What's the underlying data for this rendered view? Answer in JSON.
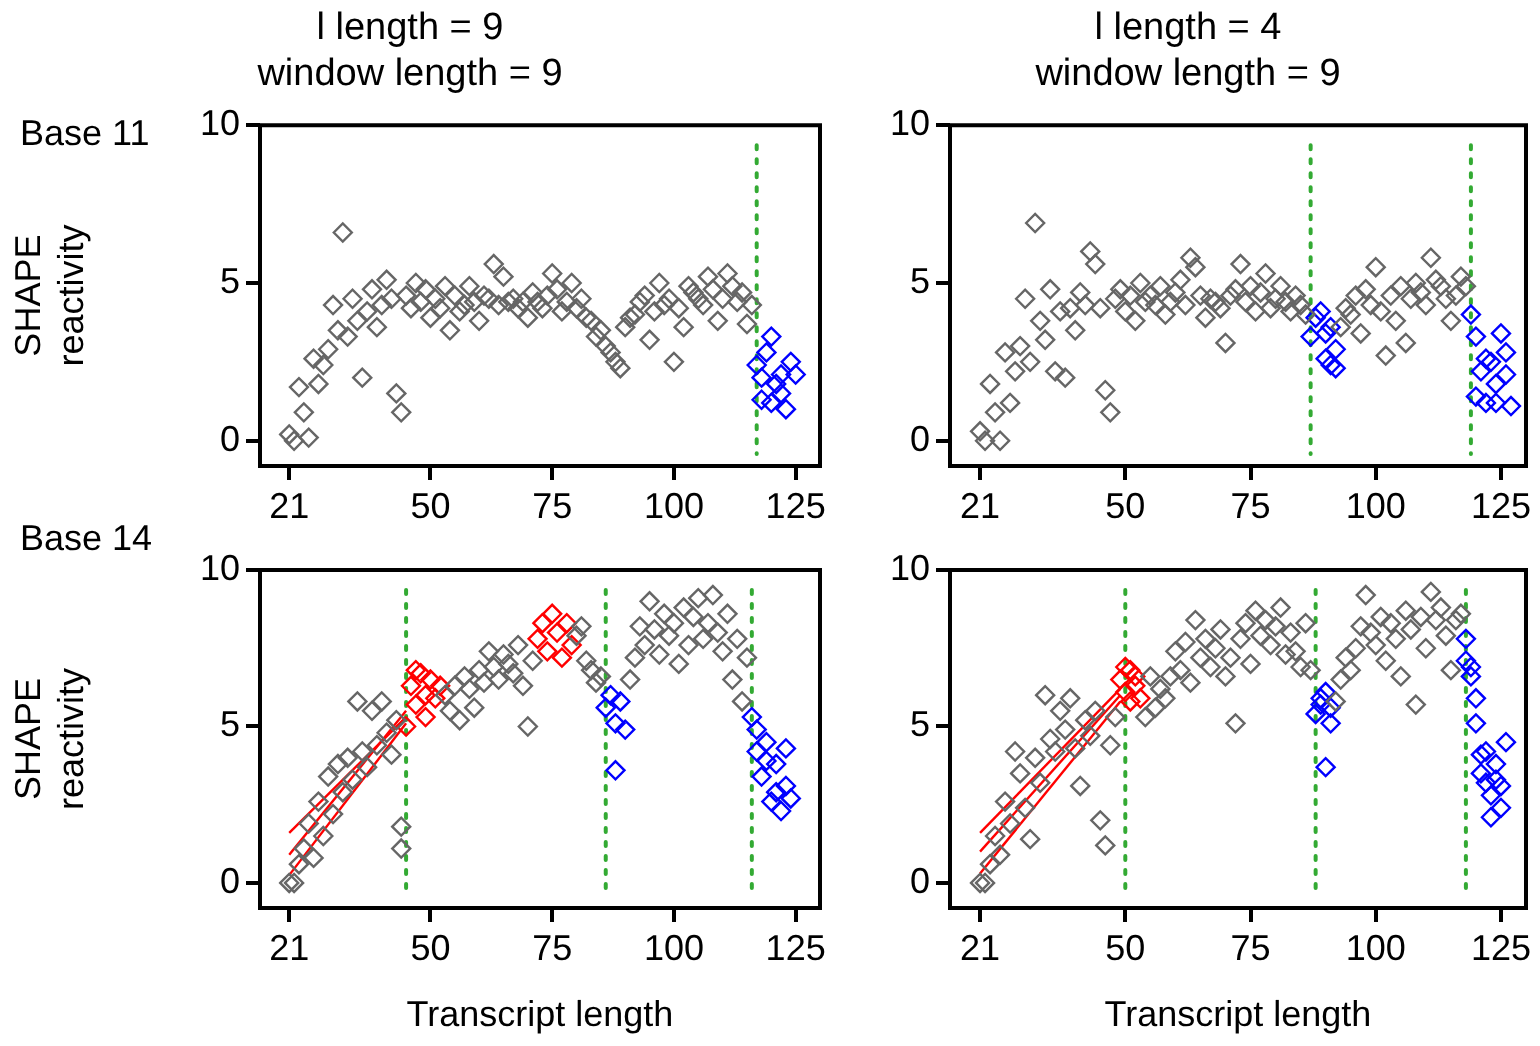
{
  "chart_data": [
    {
      "type": "scatter",
      "title": "l length = 9",
      "subtitle": "window length = 9",
      "annotations": [
        "Base 11"
      ],
      "ylabel": "SHAPE reactivity",
      "xlim": [
        15,
        130
      ],
      "ylim": [
        -0.8,
        10
      ],
      "xticks": [
        21,
        50,
        75,
        100,
        125
      ],
      "yticks": [
        0,
        5,
        10
      ],
      "grid": false,
      "legend": false,
      "marker": "diamond",
      "series": [
        {
          "color": "#666666",
          "x": [
            21,
            22,
            23,
            24,
            25,
            26,
            27,
            28,
            29,
            30,
            31,
            32,
            33,
            34,
            35,
            36,
            37,
            38,
            39,
            40,
            41,
            42,
            43,
            44,
            45,
            46,
            47,
            48,
            49,
            50,
            51,
            52,
            53,
            54,
            55,
            56,
            57,
            58,
            59,
            60,
            61,
            62,
            63,
            64,
            65,
            66,
            67,
            68,
            69,
            70,
            71,
            72,
            73,
            74,
            75,
            76,
            77,
            78,
            79,
            80,
            81,
            82,
            83,
            84,
            85,
            86,
            87,
            88,
            89,
            90,
            91,
            92,
            93,
            94,
            95,
            96,
            97,
            98,
            99,
            100,
            101,
            102,
            103,
            104,
            105,
            106,
            107,
            108,
            109,
            110,
            111,
            112,
            113,
            114,
            115,
            116
          ],
          "values": [
            0.2,
            0,
            1.7,
            0.9,
            0.1,
            2.6,
            1.8,
            2.4,
            2.9,
            4.3,
            3.5,
            6.6,
            3.3,
            4.5,
            3.8,
            2,
            4.1,
            4.8,
            3.6,
            4.3,
            5.1,
            4.5,
            1.5,
            0.9,
            4.6,
            4.2,
            5,
            4.4,
            4.8,
            3.9,
            4.5,
            4.2,
            4.9,
            3.5,
            4.6,
            4.1,
            4.3,
            4.9,
            4.4,
            3.8,
            4.6,
            4.5,
            5.6,
            4.3,
            5.2,
            4.4,
            4.5,
            4.2,
            4.4,
            3.9,
            4.7,
            4.4,
            4.2,
            4.6,
            5.3,
            4.8,
            4.1,
            4.4,
            5,
            4.2,
            4.5,
            3.9,
            3.8,
            3.3,
            3.5,
            3,
            2.8,
            2.5,
            2.3,
            3.6,
            3.9,
            4,
            4.4,
            4.6,
            3.2,
            4.1,
            5,
            4.3,
            4.5,
            2.5,
            4.2,
            3.6,
            4.9,
            4.7,
            4.5,
            4.3,
            5.2,
            4.8,
            3.8,
            4.5,
            5.3,
            4.9,
            4.4,
            4.7,
            3.7,
            4.3
          ]
        },
        {
          "color": "#0000ff",
          "x": [
            117,
            118,
            119,
            120,
            121,
            122,
            123,
            124,
            125,
            118,
            120,
            122
          ],
          "values": [
            2.4,
            1.3,
            2.8,
            3.3,
            1.8,
            2.1,
            1,
            2.5,
            2.1,
            2,
            1.2,
            1.5
          ]
        }
      ],
      "ref_lines": [
        {
          "axis": "x",
          "value": 117,
          "color": "#33aa33",
          "line_style": "dotted"
        }
      ]
    },
    {
      "type": "scatter",
      "title": "l length = 4",
      "subtitle": "window length = 9",
      "xlim": [
        15,
        130
      ],
      "ylim": [
        -0.8,
        10
      ],
      "xticks": [
        21,
        50,
        75,
        100,
        125
      ],
      "yticks": [
        0,
        5,
        10
      ],
      "grid": false,
      "legend": false,
      "marker": "diamond",
      "series": [
        {
          "color": "#666666",
          "x": [
            21,
            22,
            23,
            24,
            25,
            26,
            27,
            28,
            29,
            30,
            31,
            32,
            33,
            34,
            35,
            36,
            37,
            38,
            39,
            40,
            41,
            42,
            43,
            44,
            45,
            46,
            47,
            48,
            49,
            50,
            51,
            52,
            53,
            54,
            55,
            56,
            57,
            58,
            59,
            60,
            61,
            62,
            63,
            64,
            65,
            66,
            67,
            68,
            69,
            70,
            71,
            72,
            73,
            74,
            75,
            76,
            77,
            78,
            79,
            80,
            81,
            82,
            83,
            84,
            85,
            86,
            93,
            94,
            95,
            96,
            97,
            98,
            99,
            100,
            101,
            102,
            103,
            104,
            105,
            106,
            107,
            108,
            109,
            110,
            111,
            112,
            113,
            114,
            115,
            116,
            117,
            118
          ],
          "values": [
            0.3,
            0,
            1.8,
            0.9,
            0,
            2.8,
            1.2,
            2.2,
            3,
            4.5,
            2.5,
            6.9,
            3.8,
            3.2,
            4.8,
            2.2,
            4.1,
            2,
            4.2,
            3.5,
            4.7,
            4.3,
            6,
            5.6,
            4.2,
            1.6,
            0.9,
            4.5,
            4.8,
            4.1,
            4.6,
            3.8,
            5,
            4.4,
            4.6,
            4.3,
            4.9,
            4,
            4.4,
            4.7,
            5.1,
            4.3,
            5.8,
            5.5,
            4.6,
            3.9,
            4.5,
            4.4,
            4.2,
            3.1,
            4.6,
            4.8,
            5.6,
            4.4,
            4.9,
            4.1,
            4.7,
            5.3,
            4.2,
            4.5,
            4.9,
            4.4,
            4.1,
            4.6,
            4.3,
            4,
            3.6,
            4.2,
            4,
            4.6,
            3.4,
            4.8,
            4.3,
            5.5,
            4.1,
            2.7,
            4.6,
            3.8,
            4.9,
            3.1,
            4.5,
            5,
            4.7,
            4.3,
            5.8,
            5.1,
            4.9,
            4.5,
            3.8,
            4.6,
            5.2,
            4.9
          ]
        },
        {
          "color": "#0000ff",
          "x": [
            87,
            88,
            89,
            90,
            91,
            92,
            90,
            91,
            92,
            119,
            120,
            121,
            122,
            123,
            124,
            125,
            126,
            127,
            120,
            122,
            124,
            126
          ],
          "values": [
            3.3,
            3.9,
            4.1,
            3.4,
            3.6,
            2.9,
            2.6,
            2.4,
            2.3,
            4,
            3.3,
            2.2,
            1.2,
            2.5,
            1.8,
            3.4,
            2.1,
            1.1,
            1.4,
            2.6,
            1.2,
            2.8
          ]
        }
      ],
      "ref_lines": [
        {
          "axis": "x",
          "value": 87,
          "color": "#33aa33",
          "line_style": "dotted"
        },
        {
          "axis": "x",
          "value": 119,
          "color": "#33aa33",
          "line_style": "dotted"
        }
      ]
    },
    {
      "type": "scatter",
      "annotations": [
        "Base 14"
      ],
      "ylabel": "SHAPE reactivity",
      "xlabel": "Transcript length",
      "xlim": [
        15,
        130
      ],
      "ylim": [
        -0.8,
        10
      ],
      "xticks": [
        21,
        50,
        75,
        100,
        125
      ],
      "yticks": [
        0,
        5,
        10
      ],
      "grid": false,
      "legend": false,
      "marker": "diamond",
      "series": [
        {
          "color": "#666666",
          "x": [
            21,
            22,
            23,
            24,
            25,
            26,
            27,
            28,
            29,
            30,
            31,
            32,
            33,
            34,
            35,
            36,
            37,
            38,
            39,
            40,
            41,
            42,
            43,
            44,
            44,
            53,
            54,
            55,
            56,
            57,
            58,
            59,
            60,
            61,
            62,
            63,
            64,
            65,
            66,
            67,
            68,
            69,
            70,
            71,
            80,
            81,
            82,
            83,
            84,
            85,
            91,
            92,
            93,
            94,
            95,
            96,
            97,
            98,
            99,
            100,
            101,
            102,
            103,
            104,
            105,
            106,
            107,
            108,
            109,
            110,
            111,
            112,
            113,
            114,
            115
          ],
          "values": [
            0,
            0,
            0.6,
            1.1,
            1.9,
            0.8,
            2.6,
            1.5,
            3.4,
            2.2,
            3.8,
            2.9,
            4,
            3.3,
            5.8,
            4.2,
            3.7,
            5.5,
            4.4,
            5.8,
            4.8,
            4.1,
            5.2,
            1.8,
            1.1,
            6,
            5.5,
            6.3,
            5.2,
            6.6,
            6.2,
            5.6,
            6.8,
            6.4,
            7.4,
            6.9,
            6.5,
            7.3,
            7,
            6.7,
            7.6,
            6.3,
            5,
            7.1,
            7.9,
            8.2,
            7.1,
            6.8,
            6.4,
            6.6,
            6.5,
            7.2,
            8.2,
            7.6,
            9,
            8.1,
            7.3,
            8.6,
            7.9,
            8.3,
            7,
            8.8,
            7.6,
            8.5,
            9.1,
            7.8,
            8.3,
            9.2,
            8,
            7.4,
            8.6,
            6.5,
            7.8,
            5.8,
            7.2
          ]
        },
        {
          "color": "#ff0000",
          "x": [
            45,
            46,
            47,
            48,
            49,
            50,
            51,
            52,
            47,
            49,
            72,
            73,
            74,
            75,
            76,
            77,
            78,
            79
          ],
          "values": [
            5,
            6.3,
            5.7,
            6.7,
            6,
            6.5,
            5.9,
            6.3,
            6.8,
            5.3,
            7.8,
            8.3,
            7.4,
            8.6,
            8,
            7.2,
            8.3,
            7.6
          ]
        },
        {
          "type": "line",
          "marker": "none",
          "color": "#ff0000",
          "x": [
            21,
            45
          ],
          "values": [
            1.6,
            5.3
          ]
        },
        {
          "type": "line",
          "marker": "none",
          "color": "#ff0000",
          "x": [
            21,
            45
          ],
          "values": [
            0.9,
            5.5
          ]
        },
        {
          "type": "line",
          "marker": "none",
          "color": "#ff0000",
          "x": [
            21,
            45
          ],
          "values": [
            0.25,
            5.1
          ]
        },
        {
          "color": "#0000ff",
          "x": [
            86,
            87,
            88,
            89,
            90,
            88,
            116,
            117,
            118,
            119,
            120,
            121,
            122,
            123,
            124,
            117,
            119,
            121,
            123
          ],
          "values": [
            5.6,
            6,
            5.1,
            5.8,
            4.9,
            3.6,
            5.3,
            4.2,
            3.4,
            4.5,
            2.6,
            3.8,
            2.3,
            3.1,
            2.7,
            4.9,
            3.9,
            2.9,
            4.3
          ]
        }
      ],
      "ref_lines": [
        {
          "axis": "x",
          "value": 45,
          "color": "#33aa33",
          "line_style": "dotted"
        },
        {
          "axis": "x",
          "value": 86,
          "color": "#33aa33",
          "line_style": "dotted"
        },
        {
          "axis": "x",
          "value": 116,
          "color": "#33aa33",
          "line_style": "dotted"
        }
      ]
    },
    {
      "type": "scatter",
      "xlabel": "Transcript length",
      "xlim": [
        15,
        130
      ],
      "ylim": [
        -0.8,
        10
      ],
      "xticks": [
        21,
        50,
        75,
        100,
        125
      ],
      "yticks": [
        0,
        5,
        10
      ],
      "grid": false,
      "legend": false,
      "marker": "diamond",
      "series": [
        {
          "color": "#666666",
          "x": [
            21,
            22,
            23,
            24,
            25,
            26,
            27,
            28,
            29,
            30,
            31,
            32,
            33,
            34,
            35,
            36,
            37,
            38,
            39,
            40,
            41,
            42,
            43,
            44,
            45,
            46,
            47,
            48,
            54,
            55,
            56,
            57,
            58,
            59,
            60,
            61,
            62,
            63,
            64,
            65,
            66,
            67,
            68,
            69,
            70,
            71,
            72,
            73,
            74,
            75,
            76,
            77,
            78,
            79,
            80,
            81,
            82,
            83,
            84,
            85,
            86,
            87,
            92,
            93,
            94,
            95,
            96,
            97,
            98,
            99,
            100,
            101,
            102,
            103,
            104,
            105,
            106,
            107,
            108,
            109,
            110,
            111,
            112,
            113,
            114,
            115,
            116,
            117
          ],
          "values": [
            0,
            0,
            0.6,
            1.5,
            0.9,
            2.6,
            1.9,
            4.2,
            3.5,
            2.4,
            1.4,
            4,
            3.2,
            6,
            4.6,
            4.2,
            5.5,
            4.9,
            5.9,
            4.3,
            3.1,
            5.2,
            4.7,
            5.5,
            2,
            1.2,
            4.4,
            5.3,
            5.3,
            6.6,
            5.6,
            6.2,
            5.9,
            6.6,
            7.4,
            6.8,
            7.7,
            6.4,
            8.4,
            7.2,
            7.8,
            6.9,
            7.5,
            8.1,
            6.6,
            7.2,
            5.1,
            7.8,
            8.3,
            7,
            8.7,
            7.9,
            8.4,
            7.6,
            8.2,
            8.8,
            7.3,
            8,
            7.4,
            6.9,
            8.3,
            6.8,
            5.8,
            6.5,
            7.2,
            6.8,
            7.5,
            8.2,
            9.2,
            8,
            7.6,
            8.5,
            7.1,
            8.3,
            7.8,
            6.6,
            8.7,
            8.1,
            5.7,
            8.5,
            7.5,
            9.3,
            8.4,
            8.8,
            7.9,
            6.8,
            8.4,
            8.6
          ]
        },
        {
          "color": "#ff0000",
          "x": [
            49,
            50,
            51,
            52,
            53,
            50,
            52,
            51
          ],
          "values": [
            6.5,
            6.1,
            6.8,
            6.3,
            5.9,
            6.9,
            6.6,
            5.8
          ]
        },
        {
          "type": "line",
          "marker": "none",
          "color": "#ff0000",
          "x": [
            21,
            49
          ],
          "values": [
            1.6,
            6.2
          ]
        },
        {
          "type": "line",
          "marker": "none",
          "color": "#ff0000",
          "x": [
            21,
            49
          ],
          "values": [
            1,
            6
          ]
        },
        {
          "type": "line",
          "marker": "none",
          "color": "#ff0000",
          "x": [
            21,
            49
          ],
          "values": [
            0.3,
            5.8
          ]
        },
        {
          "color": "#0000ff",
          "x": [
            88,
            89,
            90,
            91,
            89,
            90,
            91,
            118,
            119,
            120,
            121,
            122,
            123,
            124,
            125,
            126,
            118,
            119,
            120,
            121,
            122,
            123,
            124,
            125
          ],
          "values": [
            5.4,
            5.9,
            6.1,
            5.1,
            5.7,
            3.7,
            5.6,
            7.8,
            6.9,
            5.9,
            4.1,
            3.2,
            2.1,
            3.8,
            2.4,
            4.5,
            7.1,
            6.6,
            5.1,
            3.5,
            4.2,
            2.8,
            3.3,
            3.1
          ]
        }
      ],
      "ref_lines": [
        {
          "axis": "x",
          "value": 50,
          "color": "#33aa33",
          "line_style": "dotted"
        },
        {
          "axis": "x",
          "value": 88,
          "color": "#33aa33",
          "line_style": "dotted"
        },
        {
          "axis": "x",
          "value": 118,
          "color": "#33aa33",
          "line_style": "dotted"
        }
      ]
    }
  ]
}
